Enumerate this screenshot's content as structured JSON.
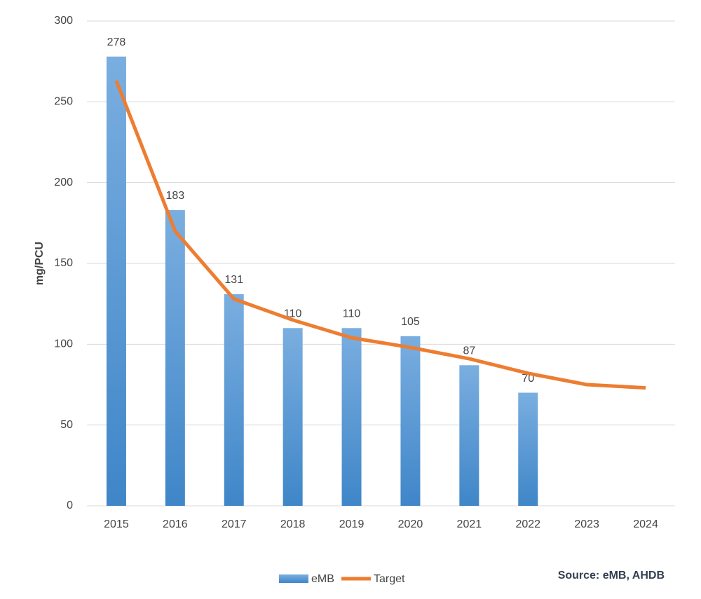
{
  "chart_data": {
    "type": "combo",
    "y_label": "mg/PCU",
    "source": "Source: eMB, AHDB",
    "categories": [
      "2015",
      "2016",
      "2017",
      "2018",
      "2019",
      "2020",
      "2021",
      "2022",
      "2023",
      "2024"
    ],
    "series": [
      {
        "name": "eMB",
        "type": "bar",
        "color": "#5b9bd5",
        "values": [
          278,
          183,
          131,
          110,
          110,
          105,
          87,
          70,
          null,
          null
        ]
      },
      {
        "name": "Target",
        "type": "line",
        "color": "#ed7d31",
        "values": [
          263,
          170,
          128,
          115,
          104,
          98,
          91,
          82,
          75,
          73
        ]
      }
    ],
    "ylim": [
      0,
      300
    ],
    "yticks": [
      0,
      50,
      100,
      150,
      200,
      250,
      300
    ],
    "grid": true,
    "legend": "bottom"
  }
}
